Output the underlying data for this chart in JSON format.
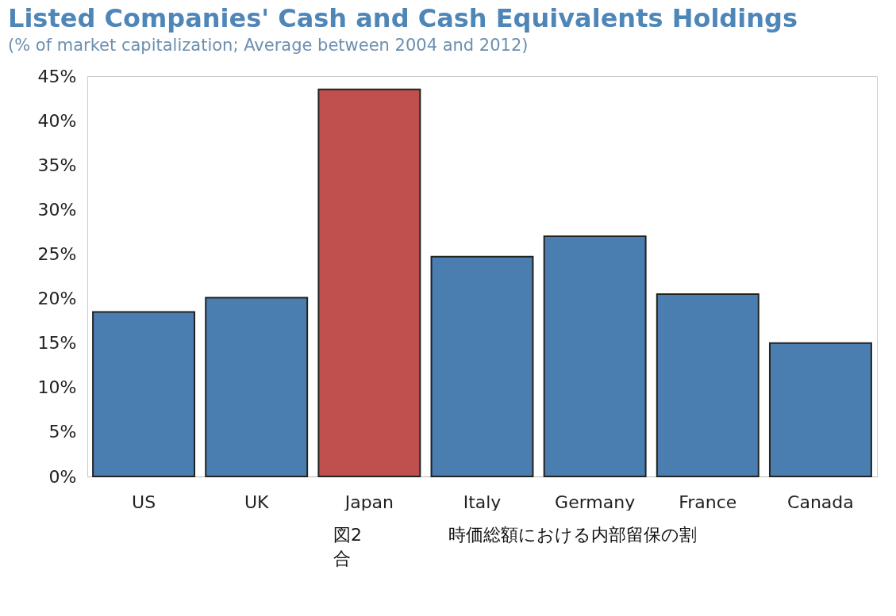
{
  "chart_data": {
    "type": "bar",
    "title": "Listed Companies' Cash and Cash Equivalents Holdings",
    "subtitle": "(% of market capitalization; Average between 2004 and 2012)",
    "categories": [
      "US",
      "UK",
      "Japan",
      "Italy",
      "Germany",
      "France",
      "Canada"
    ],
    "values": [
      18.5,
      20.1,
      43.5,
      24.7,
      27.0,
      20.5,
      15.0
    ],
    "colors": [
      "#4a7eb1",
      "#4a7eb1",
      "#c0504d",
      "#4a7eb1",
      "#4a7eb1",
      "#4a7eb1",
      "#4a7eb1"
    ],
    "ylim": [
      0,
      45
    ],
    "yticks": [
      {
        "value": 0,
        "label": "0%"
      },
      {
        "value": 5,
        "label": "5%"
      },
      {
        "value": 10,
        "label": "10%"
      },
      {
        "value": 15,
        "label": "15%"
      },
      {
        "value": 20,
        "label": "20%"
      },
      {
        "value": 25,
        "label": "25%"
      },
      {
        "value": 30,
        "label": "30%"
      },
      {
        "value": 35,
        "label": "35%"
      },
      {
        "value": 40,
        "label": "40%"
      },
      {
        "value": 45,
        "label": "45%"
      }
    ],
    "grid": false,
    "annotations": [
      "図2",
      "時価総額における内部留保の割",
      "合"
    ]
  }
}
